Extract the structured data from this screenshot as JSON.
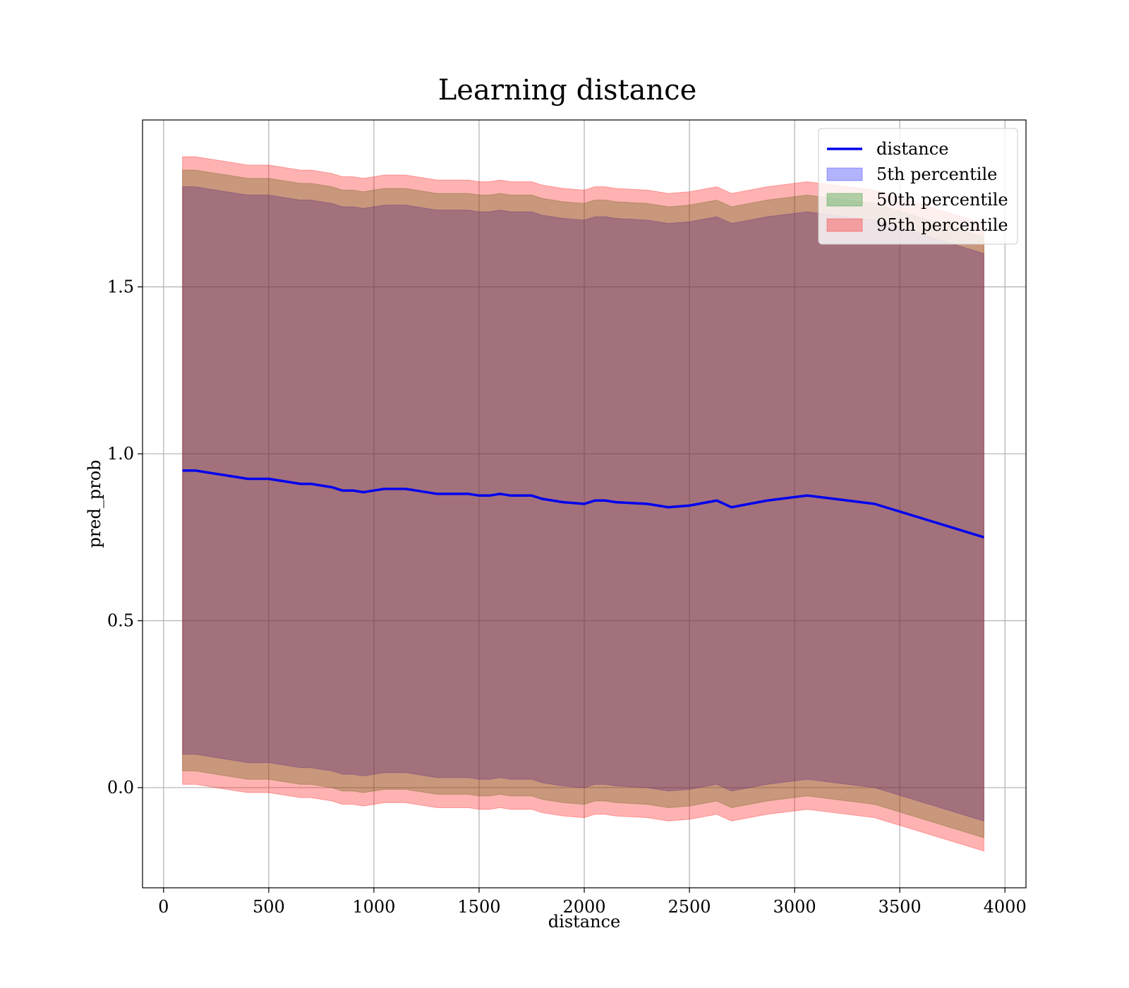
{
  "chart_data": {
    "type": "area",
    "title": "Learning distance",
    "xlabel": "distance",
    "ylabel": "pred_prob",
    "xlim": [
      -100,
      4100
    ],
    "ylim": [
      -0.3,
      2.0
    ],
    "xticks": [
      0,
      500,
      1000,
      1500,
      2000,
      2500,
      3000,
      3500,
      4000
    ],
    "xtick_labels": [
      "0",
      "500",
      "1000",
      "1500",
      "2000",
      "2500",
      "3000",
      "3500",
      "4000"
    ],
    "yticks": [
      0.0,
      0.5,
      1.0,
      1.5
    ],
    "ytick_labels": [
      "0.0",
      "0.5",
      "1.0",
      "1.5"
    ],
    "grid": true,
    "legend_position": "top-right",
    "x": [
      90,
      150,
      200,
      250,
      300,
      350,
      400,
      450,
      500,
      550,
      600,
      650,
      700,
      750,
      800,
      850,
      900,
      950,
      1000,
      1050,
      1100,
      1150,
      1200,
      1250,
      1300,
      1350,
      1400,
      1450,
      1500,
      1550,
      1600,
      1650,
      1700,
      1750,
      1800,
      1900,
      2000,
      2050,
      2100,
      2150,
      2300,
      2400,
      2500,
      2630,
      2700,
      2870,
      3060,
      3380,
      3900
    ],
    "series": [
      {
        "name": "distance",
        "kind": "line",
        "color": "#0000ee",
        "values": [
          0.95,
          0.95,
          0.945,
          0.94,
          0.935,
          0.93,
          0.925,
          0.925,
          0.925,
          0.92,
          0.915,
          0.91,
          0.91,
          0.905,
          0.9,
          0.89,
          0.89,
          0.885,
          0.89,
          0.895,
          0.895,
          0.895,
          0.89,
          0.885,
          0.88,
          0.88,
          0.88,
          0.88,
          0.875,
          0.875,
          0.88,
          0.875,
          0.875,
          0.875,
          0.865,
          0.855,
          0.85,
          0.86,
          0.86,
          0.855,
          0.85,
          0.84,
          0.845,
          0.86,
          0.84,
          0.86,
          0.875,
          0.85,
          0.75
        ]
      },
      {
        "name": "5th percentile",
        "kind": "band",
        "color": "#0000ff",
        "upper": [
          1.8,
          1.8,
          1.795,
          1.79,
          1.785,
          1.78,
          1.775,
          1.775,
          1.775,
          1.77,
          1.765,
          1.76,
          1.76,
          1.755,
          1.75,
          1.74,
          1.74,
          1.735,
          1.74,
          1.745,
          1.745,
          1.745,
          1.74,
          1.735,
          1.73,
          1.73,
          1.73,
          1.73,
          1.725,
          1.725,
          1.73,
          1.725,
          1.725,
          1.725,
          1.715,
          1.705,
          1.7,
          1.71,
          1.71,
          1.705,
          1.7,
          1.69,
          1.695,
          1.71,
          1.69,
          1.71,
          1.725,
          1.7,
          1.6
        ],
        "lower": [
          0.1,
          0.1,
          0.095,
          0.09,
          0.085,
          0.08,
          0.075,
          0.075,
          0.075,
          0.07,
          0.065,
          0.06,
          0.06,
          0.055,
          0.05,
          0.04,
          0.04,
          0.035,
          0.04,
          0.045,
          0.045,
          0.045,
          0.04,
          0.035,
          0.03,
          0.03,
          0.03,
          0.03,
          0.025,
          0.025,
          0.03,
          0.025,
          0.025,
          0.025,
          0.015,
          0.005,
          0.0,
          0.01,
          0.01,
          0.005,
          0.0,
          -0.01,
          -0.005,
          0.01,
          -0.01,
          0.01,
          0.025,
          0.0,
          -0.1
        ]
      },
      {
        "name": "50th percentile",
        "kind": "band",
        "color": "#008000",
        "upper": [
          1.85,
          1.85,
          1.845,
          1.84,
          1.835,
          1.83,
          1.825,
          1.825,
          1.825,
          1.82,
          1.815,
          1.81,
          1.81,
          1.805,
          1.8,
          1.79,
          1.79,
          1.785,
          1.79,
          1.795,
          1.795,
          1.795,
          1.79,
          1.785,
          1.78,
          1.78,
          1.78,
          1.78,
          1.775,
          1.775,
          1.78,
          1.775,
          1.775,
          1.775,
          1.765,
          1.755,
          1.75,
          1.76,
          1.76,
          1.755,
          1.75,
          1.74,
          1.745,
          1.76,
          1.74,
          1.76,
          1.775,
          1.75,
          1.65
        ],
        "lower": [
          0.05,
          0.05,
          0.045,
          0.04,
          0.035,
          0.03,
          0.025,
          0.025,
          0.025,
          0.02,
          0.015,
          0.01,
          0.01,
          0.005,
          0.0,
          -0.01,
          -0.01,
          -0.015,
          -0.01,
          -0.005,
          -0.005,
          -0.005,
          -0.01,
          -0.015,
          -0.02,
          -0.02,
          -0.02,
          -0.02,
          -0.025,
          -0.025,
          -0.02,
          -0.025,
          -0.025,
          -0.025,
          -0.035,
          -0.045,
          -0.05,
          -0.04,
          -0.04,
          -0.045,
          -0.05,
          -0.06,
          -0.055,
          -0.04,
          -0.06,
          -0.04,
          -0.025,
          -0.05,
          -0.15
        ]
      },
      {
        "name": "95th percentile",
        "kind": "band",
        "color": "#ff0000",
        "upper": [
          1.89,
          1.89,
          1.885,
          1.88,
          1.875,
          1.87,
          1.865,
          1.865,
          1.865,
          1.86,
          1.855,
          1.85,
          1.85,
          1.845,
          1.84,
          1.83,
          1.83,
          1.825,
          1.83,
          1.835,
          1.835,
          1.835,
          1.83,
          1.825,
          1.82,
          1.82,
          1.82,
          1.82,
          1.815,
          1.815,
          1.82,
          1.815,
          1.815,
          1.815,
          1.805,
          1.795,
          1.79,
          1.8,
          1.8,
          1.795,
          1.79,
          1.78,
          1.785,
          1.8,
          1.78,
          1.8,
          1.815,
          1.79,
          1.69
        ],
        "lower": [
          0.01,
          0.01,
          0.005,
          0.0,
          -0.005,
          -0.01,
          -0.015,
          -0.015,
          -0.015,
          -0.02,
          -0.025,
          -0.03,
          -0.03,
          -0.035,
          -0.04,
          -0.05,
          -0.05,
          -0.055,
          -0.05,
          -0.045,
          -0.045,
          -0.045,
          -0.05,
          -0.055,
          -0.06,
          -0.06,
          -0.06,
          -0.06,
          -0.065,
          -0.065,
          -0.06,
          -0.065,
          -0.065,
          -0.065,
          -0.075,
          -0.085,
          -0.09,
          -0.08,
          -0.08,
          -0.085,
          -0.09,
          -0.1,
          -0.095,
          -0.08,
          -0.1,
          -0.08,
          -0.065,
          -0.09,
          -0.19
        ]
      }
    ]
  }
}
